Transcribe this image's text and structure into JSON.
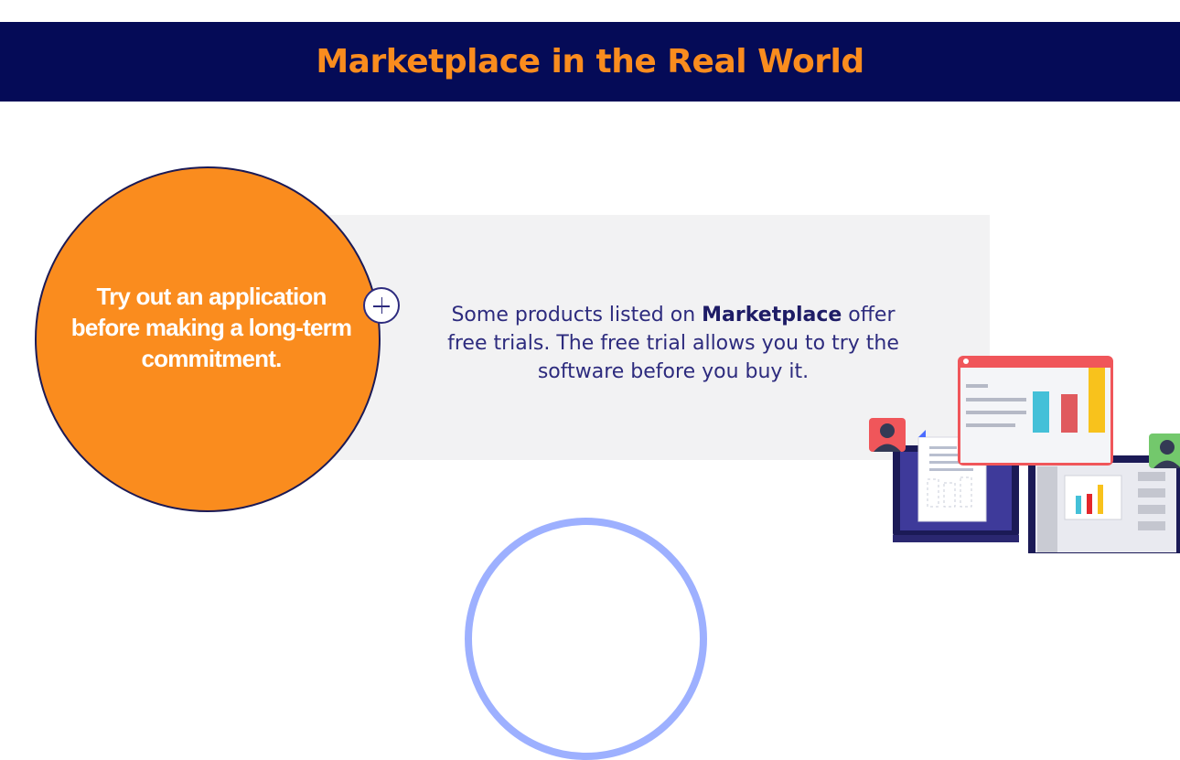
{
  "header": {
    "title": "Marketplace in the Real World"
  },
  "card": {
    "circle_text": "Try out an application before making a long-term commitment.",
    "body_before": "Some products listed on ",
    "body_emphasis": "Marketplace",
    "body_after": " offer free trials. The free trial allows you to try the software before you buy it."
  },
  "colors": {
    "header_bg": "#050b57",
    "accent_orange": "#fa8c1e",
    "text_navy": "#2d2b7e",
    "panel_bg": "#f2f2f3",
    "arc_blue": "#9db0ff"
  },
  "icons": {
    "expand": "plus-icon",
    "illustration": "devices-analytics-illustration"
  }
}
